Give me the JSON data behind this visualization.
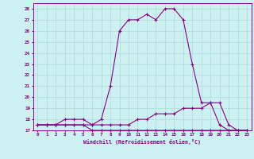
{
  "xlabel": "Windchill (Refroidissement éolien,°C)",
  "bg_color": "#cdf0f0",
  "grid_color": "#aadddd",
  "line_color": "#880088",
  "hours": [
    0,
    1,
    2,
    3,
    4,
    5,
    6,
    7,
    8,
    9,
    10,
    11,
    12,
    13,
    14,
    15,
    16,
    17,
    18,
    19,
    20,
    21,
    22,
    23
  ],
  "temp": [
    17.5,
    17.5,
    17.5,
    18.0,
    18.0,
    18.0,
    17.5,
    18.0,
    21.0,
    26.0,
    27.0,
    27.0,
    27.5,
    27.0,
    28.0,
    28.0,
    27.0,
    23.0,
    19.5,
    19.5,
    19.5,
    17.5,
    17.0,
    17.0
  ],
  "windchill": [
    17.5,
    17.5,
    17.5,
    17.5,
    17.5,
    17.5,
    17.5,
    17.5,
    17.5,
    17.5,
    17.5,
    18.0,
    18.0,
    18.5,
    18.5,
    18.5,
    19.0,
    19.0,
    19.0,
    19.5,
    17.5,
    17.0,
    17.0,
    17.0
  ],
  "apparent": [
    17.5,
    17.5,
    17.5,
    17.5,
    17.5,
    17.5,
    17.0,
    17.0,
    17.0,
    17.0,
    17.0,
    17.0,
    17.0,
    17.0,
    17.0,
    17.0,
    17.0,
    17.0,
    17.0,
    17.0,
    17.0,
    17.0,
    17.0,
    17.0
  ],
  "ylim": [
    17,
    28.5
  ],
  "yticks": [
    17,
    18,
    19,
    20,
    21,
    22,
    23,
    24,
    25,
    26,
    27,
    28
  ],
  "xlim": [
    -0.5,
    23.5
  ]
}
